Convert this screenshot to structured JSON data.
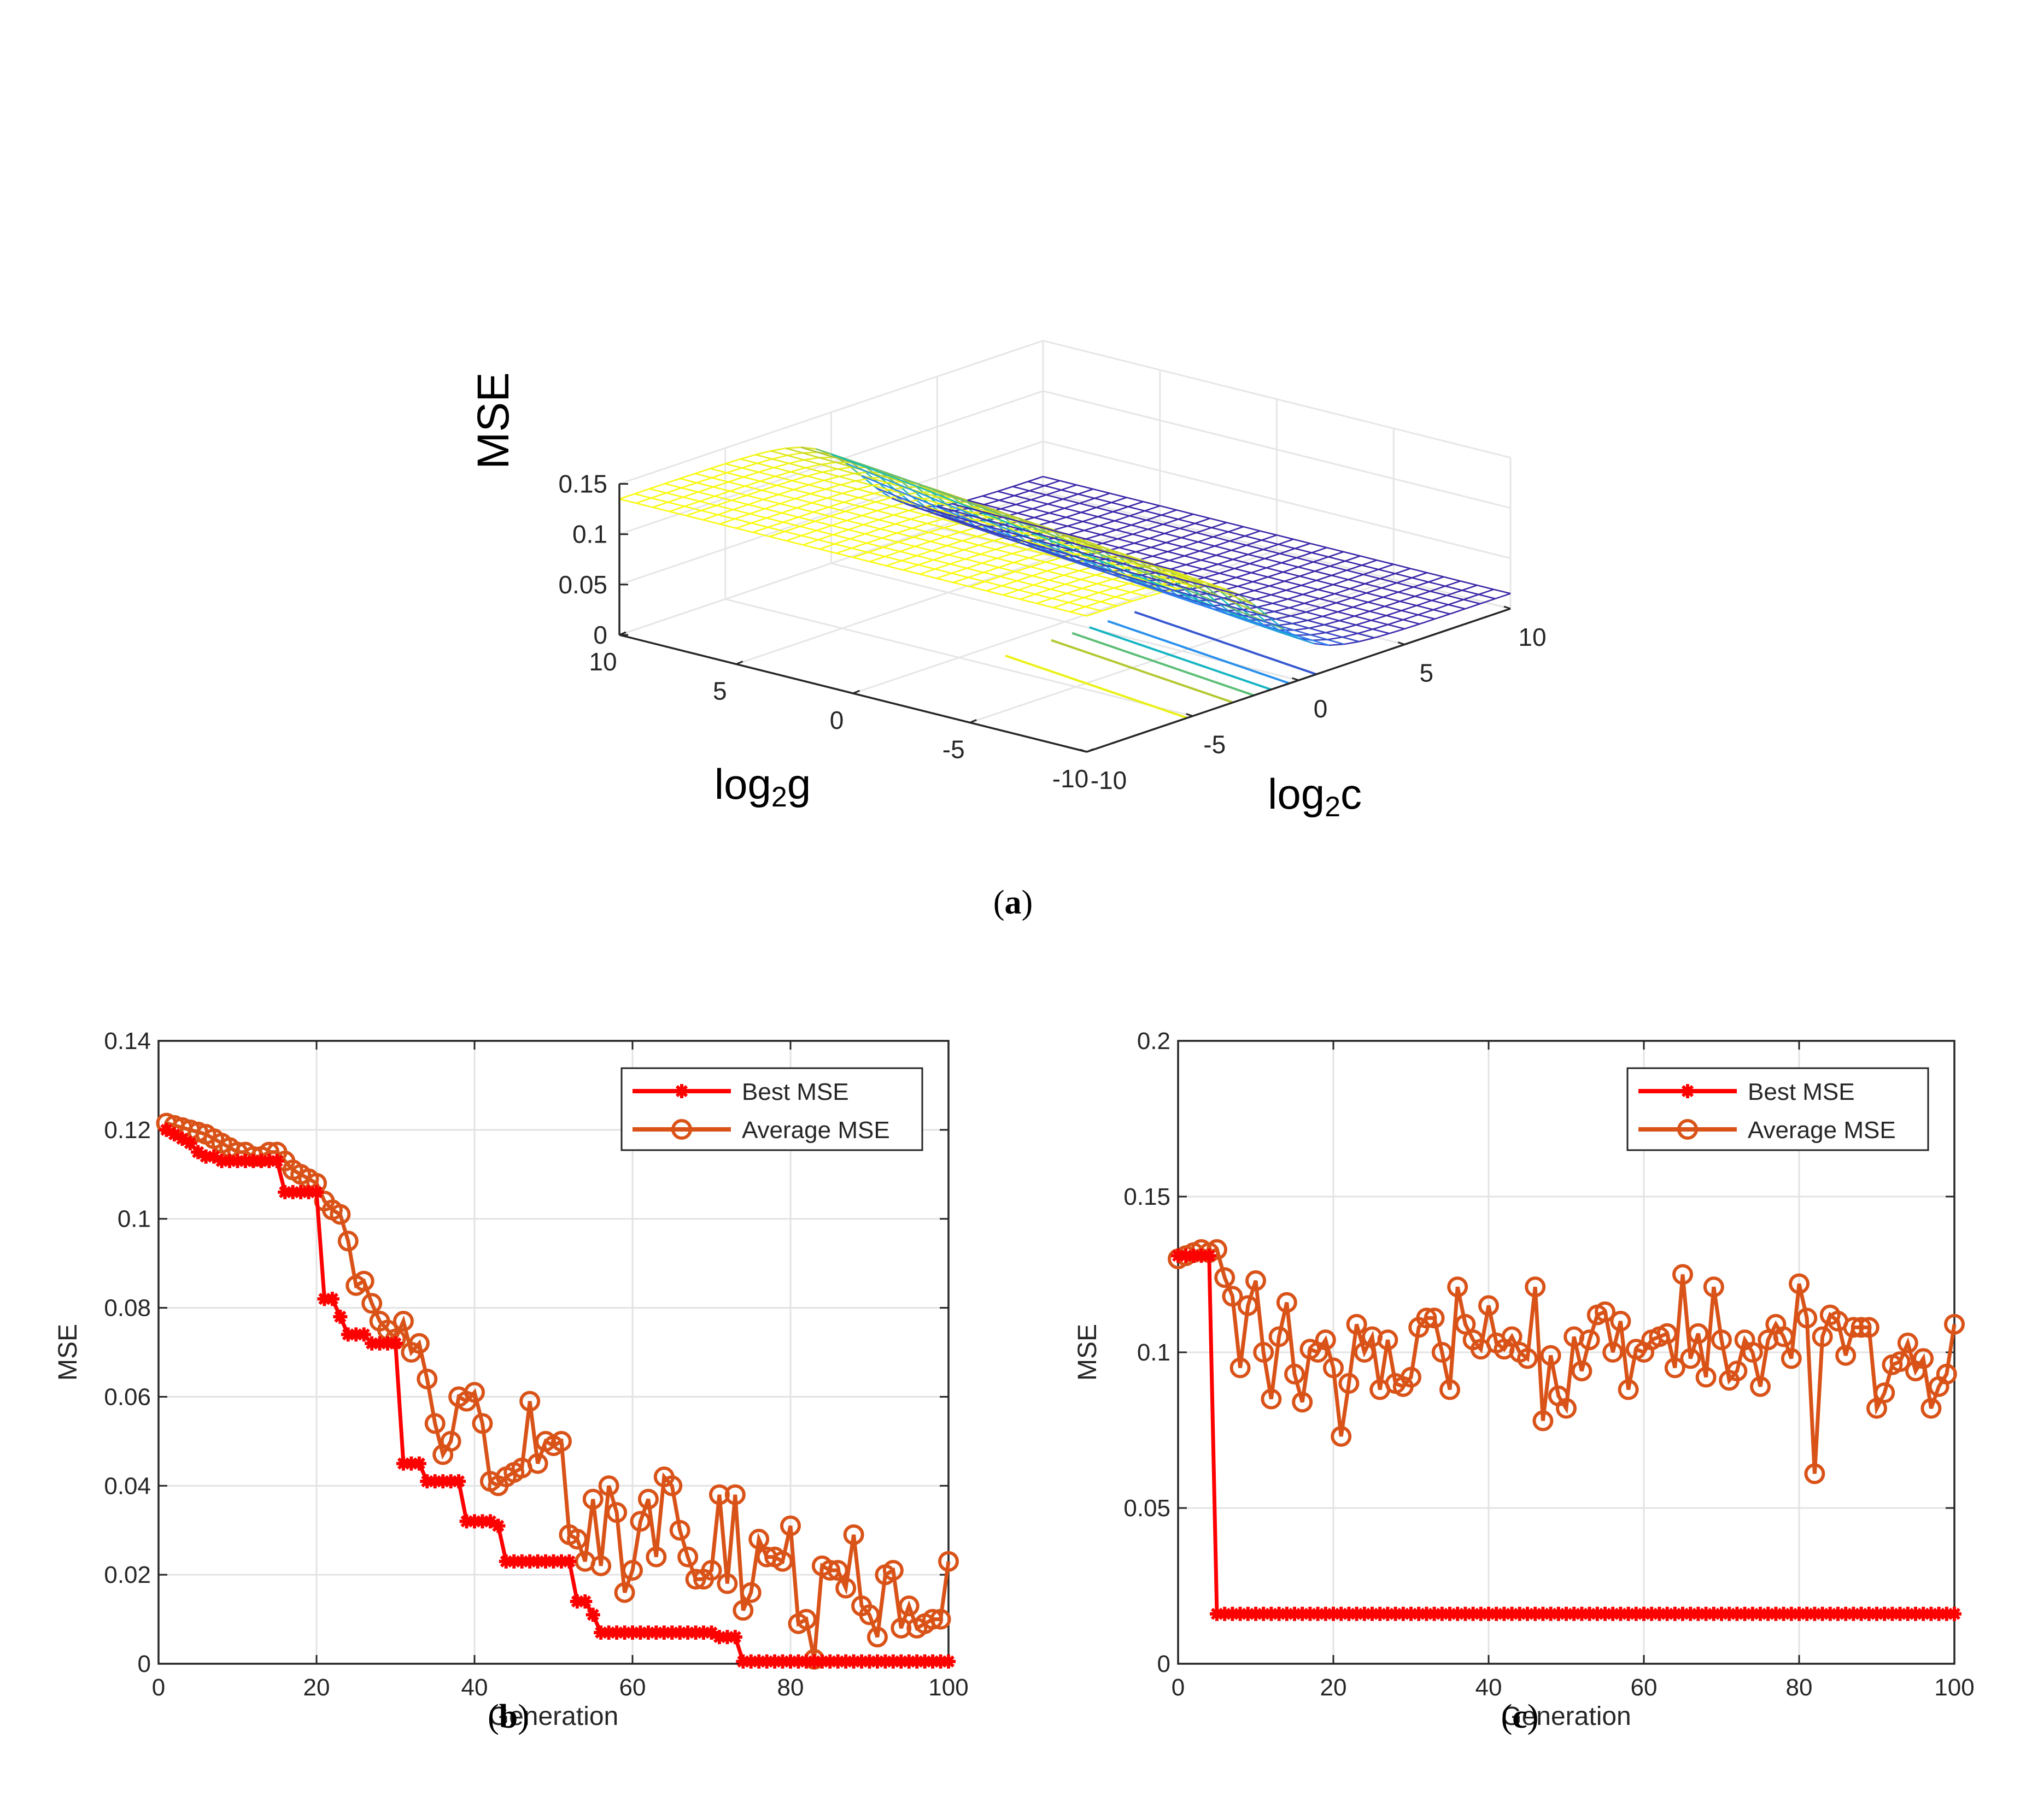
{
  "panels": {
    "a": {
      "label": "a"
    },
    "b": {
      "label": "b"
    },
    "c": {
      "label": "c"
    }
  },
  "chart_data": [
    {
      "id": "a",
      "type": "surface3d",
      "zlabel": "MSE",
      "xlabel": "log",
      "xlabel_sub": "2",
      "xlabel_suffix": "g",
      "ylabel": "log",
      "ylabel_sub": "2",
      "ylabel_suffix": "c",
      "xlim": [
        -10,
        10
      ],
      "ylim": [
        -10,
        10
      ],
      "zlim": [
        0,
        0.15
      ],
      "g_ticks": [
        10,
        5,
        0,
        -5,
        -10
      ],
      "g_tick_labels": [
        "10",
        "5",
        "0",
        "-5",
        "-10"
      ],
      "c_ticks": [
        -10,
        -5,
        0,
        5,
        10
      ],
      "c_tick_labels": [
        "-10",
        "-5",
        "0",
        "5",
        "10"
      ],
      "z_ticks": [
        0,
        0.05,
        0.1,
        0.15
      ],
      "z_tick_labels": [
        "0",
        "0.05",
        "0.1",
        "0.15"
      ],
      "surface": {
        "description": "MSE is about 0.135 for log2c below -2 and drops to about 0.015 for log2c above 1; smooth sigmoid transition in log2c",
        "high_value": 0.135,
        "low_value": 0.015,
        "transition_center_log2c": 0.0,
        "transition_width": 1.2
      },
      "contour_levels": [
        0.03,
        0.05,
        0.07,
        0.09,
        0.11,
        0.13
      ]
    },
    {
      "id": "b",
      "type": "line",
      "title": "",
      "xlabel": "Generation",
      "ylabel": "MSE",
      "xlim": [
        0,
        100
      ],
      "ylim": [
        0,
        0.14
      ],
      "x_ticks": [
        0,
        20,
        40,
        60,
        80,
        100
      ],
      "x_tick_labels": [
        "0",
        "20",
        "40",
        "60",
        "80",
        "100"
      ],
      "y_ticks": [
        0,
        0.02,
        0.04,
        0.06,
        0.08,
        0.1,
        0.12,
        0.14
      ],
      "y_tick_labels": [
        "0",
        "0.02",
        "0.04",
        "0.06",
        "0.08",
        "0.1",
        "0.12",
        "0.14"
      ],
      "grid": true,
      "legend_position": "top-right",
      "x": [
        1,
        2,
        3,
        4,
        5,
        6,
        7,
        8,
        9,
        10,
        11,
        12,
        13,
        14,
        15,
        16,
        17,
        18,
        19,
        20,
        21,
        22,
        23,
        24,
        25,
        26,
        27,
        28,
        29,
        30,
        31,
        32,
        33,
        34,
        35,
        36,
        37,
        38,
        39,
        40,
        41,
        42,
        43,
        44,
        45,
        46,
        47,
        48,
        49,
        50,
        51,
        52,
        53,
        54,
        55,
        56,
        57,
        58,
        59,
        60,
        61,
        62,
        63,
        64,
        65,
        66,
        67,
        68,
        69,
        70,
        71,
        72,
        73,
        74,
        75,
        76,
        77,
        78,
        79,
        80,
        81,
        82,
        83,
        84,
        85,
        86,
        87,
        88,
        89,
        90,
        91,
        92,
        93,
        94,
        95,
        96,
        97,
        98,
        99,
        100
      ],
      "series": [
        {
          "name": "Best MSE",
          "color": "#ff0000",
          "marker": "asterisk",
          "values": [
            0.12,
            0.119,
            0.118,
            0.117,
            0.115,
            0.114,
            0.114,
            0.113,
            0.113,
            0.113,
            0.113,
            0.113,
            0.113,
            0.113,
            0.113,
            0.106,
            0.106,
            0.106,
            0.106,
            0.106,
            0.082,
            0.082,
            0.078,
            0.074,
            0.074,
            0.074,
            0.072,
            0.072,
            0.072,
            0.072,
            0.045,
            0.045,
            0.045,
            0.041,
            0.041,
            0.041,
            0.041,
            0.041,
            0.032,
            0.032,
            0.032,
            0.032,
            0.031,
            0.023,
            0.023,
            0.023,
            0.023,
            0.023,
            0.023,
            0.023,
            0.023,
            0.023,
            0.014,
            0.014,
            0.011,
            0.007,
            0.007,
            0.007,
            0.007,
            0.007,
            0.007,
            0.007,
            0.007,
            0.007,
            0.007,
            0.007,
            0.007,
            0.007,
            0.007,
            0.007,
            0.006,
            0.006,
            0.006,
            0.0005,
            0.0005,
            0.0005,
            0.0005,
            0.0005,
            0.0005,
            0.0005,
            0.0005,
            0.0005,
            0.0005,
            0.0005,
            0.0005,
            0.0005,
            0.0005,
            0.0005,
            0.0005,
            0.0005,
            0.0005,
            0.0005,
            0.0005,
            0.0005,
            0.0005,
            0.0005,
            0.0005,
            0.0005,
            0.0005,
            0.0005
          ]
        },
        {
          "name": "Average MSE",
          "color": "#d95319",
          "marker": "circle",
          "values": [
            0.1215,
            0.121,
            0.1205,
            0.12,
            0.1195,
            0.119,
            0.118,
            0.117,
            0.116,
            0.115,
            0.115,
            0.114,
            0.114,
            0.115,
            0.115,
            0.113,
            0.111,
            0.11,
            0.109,
            0.108,
            0.104,
            0.102,
            0.101,
            0.095,
            0.085,
            0.086,
            0.081,
            0.077,
            0.075,
            0.073,
            0.077,
            0.07,
            0.072,
            0.064,
            0.054,
            0.047,
            0.05,
            0.06,
            0.059,
            0.061,
            0.054,
            0.041,
            0.04,
            0.042,
            0.043,
            0.044,
            0.059,
            0.045,
            0.05,
            0.049,
            0.05,
            0.029,
            0.028,
            0.023,
            0.037,
            0.022,
            0.04,
            0.034,
            0.016,
            0.021,
            0.032,
            0.037,
            0.024,
            0.042,
            0.04,
            0.03,
            0.024,
            0.019,
            0.019,
            0.021,
            0.038,
            0.018,
            0.038,
            0.012,
            0.016,
            0.028,
            0.024,
            0.024,
            0.023,
            0.031,
            0.009,
            0.01,
            0.001,
            0.022,
            0.021,
            0.021,
            0.017,
            0.029,
            0.013,
            0.011,
            0.006,
            0.02,
            0.021,
            0.008,
            0.013,
            0.008,
            0.009,
            0.01,
            0.01,
            0.023
          ]
        }
      ]
    },
    {
      "id": "c",
      "type": "line",
      "title": "",
      "xlabel": "Generation",
      "ylabel": "MSE",
      "xlim": [
        0,
        100
      ],
      "ylim": [
        0,
        0.2
      ],
      "x_ticks": [
        0,
        20,
        40,
        60,
        80,
        100
      ],
      "x_tick_labels": [
        "0",
        "20",
        "40",
        "60",
        "80",
        "100"
      ],
      "y_ticks": [
        0,
        0.05,
        0.1,
        0.15,
        0.2
      ],
      "y_tick_labels": [
        "0",
        "0.05",
        "0.1",
        "0.15",
        "0.2"
      ],
      "grid": true,
      "legend_position": "top-right",
      "x": [
        0,
        1,
        2,
        3,
        4,
        5,
        6,
        7,
        8,
        9,
        10,
        11,
        12,
        13,
        14,
        15,
        16,
        17,
        18,
        19,
        20,
        21,
        22,
        23,
        24,
        25,
        26,
        27,
        28,
        29,
        30,
        31,
        32,
        33,
        34,
        35,
        36,
        37,
        38,
        39,
        40,
        41,
        42,
        43,
        44,
        45,
        46,
        47,
        48,
        49,
        50,
        51,
        52,
        53,
        54,
        55,
        56,
        57,
        58,
        59,
        60,
        61,
        62,
        63,
        64,
        65,
        66,
        67,
        68,
        69,
        70,
        71,
        72,
        73,
        74,
        75,
        76,
        77,
        78,
        79,
        80,
        81,
        82,
        83,
        84,
        85,
        86,
        87,
        88,
        89,
        90,
        91,
        92,
        93,
        94,
        95,
        96,
        97,
        98,
        99,
        100
      ],
      "series": [
        {
          "name": "Best MSE",
          "color": "#ff0000",
          "marker": "asterisk",
          "values": [
            0.131,
            0.131,
            0.131,
            0.131,
            0.131,
            0.016,
            0.016,
            0.016,
            0.016,
            0.016,
            0.016,
            0.016,
            0.016,
            0.016,
            0.016,
            0.016,
            0.016,
            0.016,
            0.016,
            0.016,
            0.016,
            0.016,
            0.016,
            0.016,
            0.016,
            0.016,
            0.016,
            0.016,
            0.016,
            0.016,
            0.016,
            0.016,
            0.016,
            0.016,
            0.016,
            0.016,
            0.016,
            0.016,
            0.016,
            0.016,
            0.016,
            0.016,
            0.016,
            0.016,
            0.016,
            0.016,
            0.016,
            0.016,
            0.016,
            0.016,
            0.016,
            0.016,
            0.016,
            0.016,
            0.016,
            0.016,
            0.016,
            0.016,
            0.016,
            0.016,
            0.016,
            0.016,
            0.016,
            0.016,
            0.016,
            0.016,
            0.016,
            0.016,
            0.016,
            0.016,
            0.016,
            0.016,
            0.016,
            0.016,
            0.016,
            0.016,
            0.016,
            0.016,
            0.016,
            0.016,
            0.016,
            0.016,
            0.016,
            0.016,
            0.016,
            0.016,
            0.016,
            0.016,
            0.016,
            0.016,
            0.016,
            0.016,
            0.016,
            0.016,
            0.016,
            0.016,
            0.016,
            0.016,
            0.016,
            0.016,
            0.016
          ]
        },
        {
          "name": "Average MSE",
          "color": "#d95319",
          "marker": "circle",
          "values": [
            0.13,
            0.131,
            0.132,
            0.133,
            0.132,
            0.133,
            0.124,
            0.118,
            0.095,
            0.115,
            0.123,
            0.1,
            0.085,
            0.105,
            0.116,
            0.093,
            0.084,
            0.101,
            0.1,
            0.104,
            0.095,
            0.073,
            0.09,
            0.109,
            0.1,
            0.105,
            0.088,
            0.104,
            0.09,
            0.089,
            0.092,
            0.108,
            0.111,
            0.111,
            0.1,
            0.088,
            0.121,
            0.109,
            0.104,
            0.101,
            0.115,
            0.103,
            0.101,
            0.105,
            0.1,
            0.098,
            0.121,
            0.078,
            0.099,
            0.086,
            0.082,
            0.105,
            0.094,
            0.104,
            0.112,
            0.113,
            0.1,
            0.11,
            0.088,
            0.101,
            0.1,
            0.104,
            0.105,
            0.106,
            0.095,
            0.125,
            0.098,
            0.106,
            0.092,
            0.121,
            0.104,
            0.091,
            0.094,
            0.104,
            0.1,
            0.089,
            0.104,
            0.109,
            0.105,
            0.098,
            0.122,
            0.111,
            0.061,
            0.105,
            0.112,
            0.11,
            0.099,
            0.108,
            0.108,
            0.108,
            0.082,
            0.087,
            0.096,
            0.097,
            0.103,
            0.094,
            0.098,
            0.082,
            0.089,
            0.093,
            0.109
          ]
        }
      ]
    }
  ]
}
